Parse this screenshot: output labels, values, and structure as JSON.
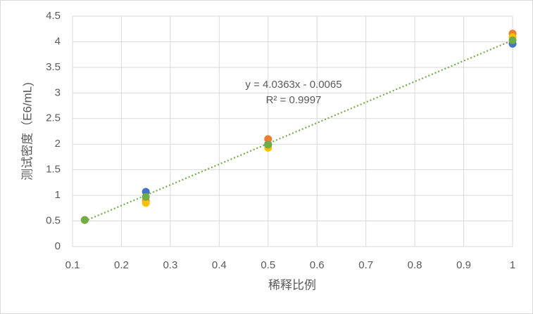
{
  "chart_data": {
    "type": "scatter",
    "x_label": "稀释比例",
    "y_label": "测试密度（E6/mL)",
    "xlim": [
      0.1,
      1
    ],
    "ylim": [
      0,
      4.5
    ],
    "xticks": [
      0.1,
      0.2,
      0.3,
      0.4,
      0.5,
      0.6,
      0.7,
      0.8,
      0.9,
      1
    ],
    "yticks": [
      0,
      0.5,
      1,
      1.5,
      2,
      2.5,
      3,
      3.5,
      4,
      4.5
    ],
    "grid": true,
    "x": [
      0.125,
      0.25,
      0.5,
      1
    ],
    "series": [
      {
        "color": "#4472c4",
        "values": [
          0.52,
          1.07,
          2.0,
          3.96
        ]
      },
      {
        "color": "#ed7d31",
        "values": [
          0.52,
          0.89,
          2.1,
          4.16
        ]
      },
      {
        "color": "#ffc000",
        "values": [
          0.52,
          0.85,
          1.93,
          4.09
        ]
      },
      {
        "color": "#70ad47",
        "values": [
          0.52,
          0.97,
          1.99,
          4.03
        ]
      }
    ],
    "trendline": {
      "equation": "y = 4.0363x - 0.0065",
      "r_squared": "R² = 0.9997",
      "slope": 4.0363,
      "intercept": -0.0065,
      "color": "#70ad47"
    }
  }
}
